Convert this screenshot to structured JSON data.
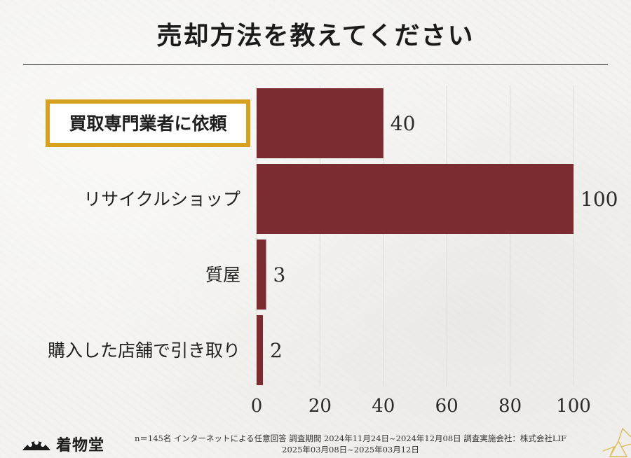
{
  "title": "売却方法を教えてください",
  "chart_data": {
    "type": "bar",
    "orientation": "horizontal",
    "categories": [
      "買取専門業者に依頼",
      "リサイクルショップ",
      "質屋",
      "購入した店舗で引き取り"
    ],
    "values": [
      40,
      100,
      3,
      2
    ],
    "highlight_category": "買取専門業者に依頼",
    "xlim": [
      0,
      100
    ],
    "xticks": [
      "0",
      "20",
      "40",
      "60",
      "80",
      "100"
    ],
    "grid": "vertical",
    "bar_color": "#7a2c31",
    "highlight_color": "#d6a21e"
  },
  "footer": {
    "brand": "着物堂",
    "line1": "n＝145名 インターネットによる任意回答 調査期間 2024年11月24日~2024年12月08日 調査実施会社：株式会社LIF",
    "line2": "2025年03月08日~2025年03月12日"
  }
}
